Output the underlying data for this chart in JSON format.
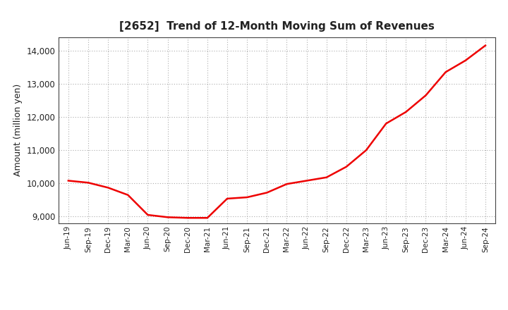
{
  "title": "[2652]  Trend of 12-Month Moving Sum of Revenues",
  "ylabel": "Amount (million yen)",
  "line_color": "#EE0000",
  "line_width": 1.8,
  "background_color": "#FFFFFF",
  "plot_bg_color": "#FFFFFF",
  "grid_color": "#AAAAAA",
  "ylim": [
    8800,
    14400
  ],
  "yticks": [
    9000,
    10000,
    11000,
    12000,
    13000,
    14000
  ],
  "x_labels": [
    "Jun-19",
    "Sep-19",
    "Dec-19",
    "Mar-20",
    "Jun-20",
    "Sep-20",
    "Dec-20",
    "Mar-21",
    "Jun-21",
    "Sep-21",
    "Dec-21",
    "Mar-22",
    "Jun-22",
    "Sep-22",
    "Dec-22",
    "Mar-23",
    "Jun-23",
    "Sep-23",
    "Dec-23",
    "Mar-24",
    "Jun-24",
    "Sep-24"
  ],
  "y_values": [
    10080,
    10020,
    9870,
    9650,
    9050,
    8980,
    8960,
    8960,
    9540,
    9580,
    9720,
    9980,
    10080,
    10180,
    10500,
    11000,
    11800,
    12150,
    12650,
    13350,
    13700,
    14150
  ]
}
